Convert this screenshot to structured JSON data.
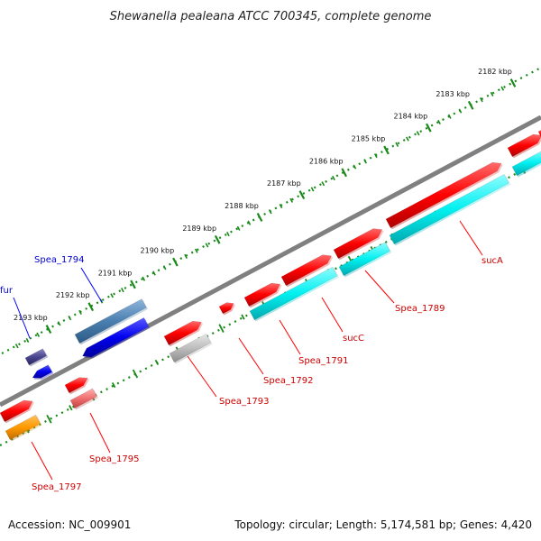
{
  "title": "Shewanella pealeana ATCC 700345, complete genome",
  "footer": {
    "accession": "Accession: NC_009901",
    "summary": "Topology: circular; Length: 5,174,581 bp; Genes: 4,420"
  },
  "ticks": [
    {
      "label": "2182 kbp",
      "kbp": 2182
    },
    {
      "label": "2183 kbp",
      "kbp": 2183
    },
    {
      "label": "2184 kbp",
      "kbp": 2184
    },
    {
      "label": "2185 kbp",
      "kbp": 2185
    },
    {
      "label": "2186 kbp",
      "kbp": 2186
    },
    {
      "label": "2187 kbp",
      "kbp": 2187
    },
    {
      "label": "2188 kbp",
      "kbp": 2188
    },
    {
      "label": "2189 kbp",
      "kbp": 2189
    },
    {
      "label": "2190 kbp",
      "kbp": 2190
    },
    {
      "label": "2191 kbp",
      "kbp": 2191
    },
    {
      "label": "2192 kbp",
      "kbp": 2192
    },
    {
      "label": "2193 kbp",
      "kbp": 2193
    }
  ],
  "genes": [
    {
      "name": "sucA",
      "color": "#ff0000",
      "strand": "forward"
    },
    {
      "name": "Spea_1789",
      "color": "#ff0000",
      "strand": "forward"
    },
    {
      "name": "sucC",
      "color": "#ff0000",
      "strand": "forward"
    },
    {
      "name": "Spea_1791",
      "color": "#ff0000",
      "strand": "forward"
    },
    {
      "name": "Spea_1792",
      "color": "#ff0000",
      "strand": "forward"
    },
    {
      "name": "Spea_1793",
      "color": "#ff0000",
      "strand": "forward"
    },
    {
      "name": "Spea_1794",
      "color": "#0000ff",
      "strand": "reverse"
    },
    {
      "name": "fur",
      "color": "#0000ff",
      "strand": "reverse"
    },
    {
      "name": "Spea_1795",
      "color": "#ff0000",
      "strand": "forward"
    },
    {
      "name": "Spea_1797",
      "color": "#ff0000",
      "strand": "forward"
    }
  ]
}
